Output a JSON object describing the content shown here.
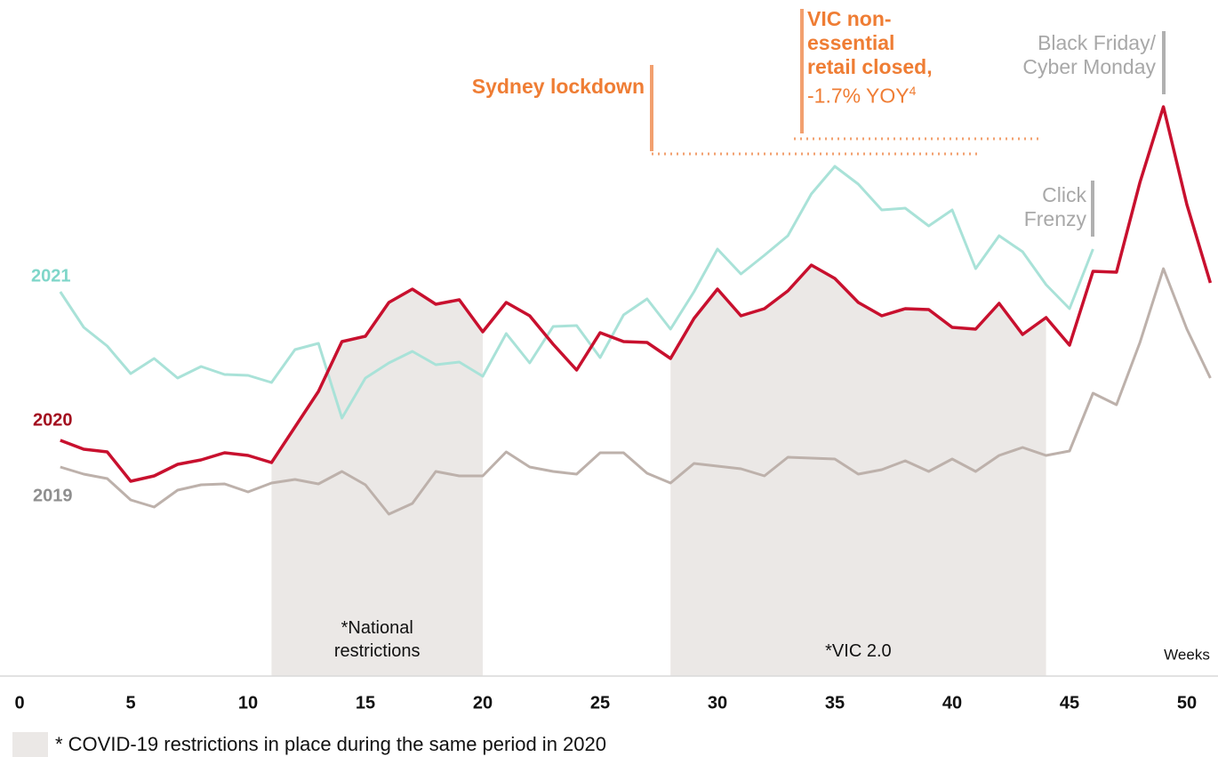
{
  "chart_data": {
    "type": "line",
    "x_label": "Weeks",
    "x": [
      2,
      3,
      4,
      5,
      6,
      7,
      8,
      9,
      10,
      11,
      12,
      13,
      14,
      15,
      16,
      17,
      18,
      19,
      20,
      21,
      22,
      23,
      24,
      25,
      26,
      27,
      28,
      29,
      30,
      31,
      32,
      33,
      34,
      35,
      36,
      37,
      38,
      39,
      40,
      41,
      42,
      43,
      44,
      45,
      46,
      47,
      48,
      49,
      50,
      51
    ],
    "xlim": [
      0,
      52
    ],
    "xticks": [
      0,
      5,
      10,
      15,
      20,
      25,
      30,
      35,
      40,
      45,
      50
    ],
    "ylim": [
      0,
      700
    ],
    "series": [
      {
        "name": "2021",
        "color": "#a9e2d8",
        "values": [
          432,
          392,
          371,
          340,
          357,
          335,
          348,
          339,
          338,
          330,
          367,
          374,
          290,
          335,
          352,
          365,
          350,
          353,
          337,
          385,
          352,
          393,
          394,
          358,
          406,
          424,
          390,
          432,
          480,
          452,
          473,
          495,
          542,
          573,
          553,
          524,
          526,
          506,
          524,
          458,
          495,
          477,
          440,
          413,
          480,
          null,
          null,
          null,
          null,
          null
        ]
      },
      {
        "name": "2020",
        "color": "#c8102e",
        "values": [
          265,
          255,
          252,
          219,
          225,
          238,
          243,
          251,
          248,
          240,
          280,
          320,
          376,
          382,
          420,
          435,
          418,
          423,
          387,
          420,
          405,
          373,
          344,
          386,
          376,
          375,
          357,
          402,
          435,
          405,
          413,
          433,
          462,
          447,
          420,
          405,
          413,
          412,
          392,
          390,
          419,
          384,
          403,
          372,
          455,
          454,
          555,
          640,
          530,
          442
        ]
      },
      {
        "name": "2019",
        "color": "#bdb1ab",
        "values": [
          235,
          227,
          222,
          198,
          190,
          209,
          215,
          216,
          207,
          217,
          221,
          216,
          230,
          215,
          182,
          194,
          230,
          225,
          225,
          252,
          235,
          230,
          227,
          251,
          251,
          228,
          217,
          239,
          236,
          233,
          225,
          246,
          245,
          244,
          227,
          232,
          242,
          230,
          244,
          230,
          248,
          257,
          248,
          253,
          318,
          305,
          375,
          458,
          390,
          335
        ]
      }
    ],
    "shaded_ranges": [
      {
        "start": 11,
        "end": 20,
        "lines": [
          "*National",
          "restrictions"
        ]
      },
      {
        "start": 28,
        "end": 44,
        "lines": [
          "*VIC 2.0"
        ]
      }
    ],
    "annotations": [
      {
        "lines": [
          "Sydney lockdown"
        ]
      },
      {
        "lines": [
          "VIC non-",
          "essential",
          "retail closed,"
        ],
        "note": "-1.7% YOY",
        "footnote_ref": "4"
      },
      {
        "lines": [
          "Black Friday/",
          "Cyber Monday"
        ]
      },
      {
        "lines": [
          "Click",
          "Frenzy"
        ]
      }
    ],
    "footnote": "* COVID-19 restrictions in place during the same period in 2020"
  }
}
